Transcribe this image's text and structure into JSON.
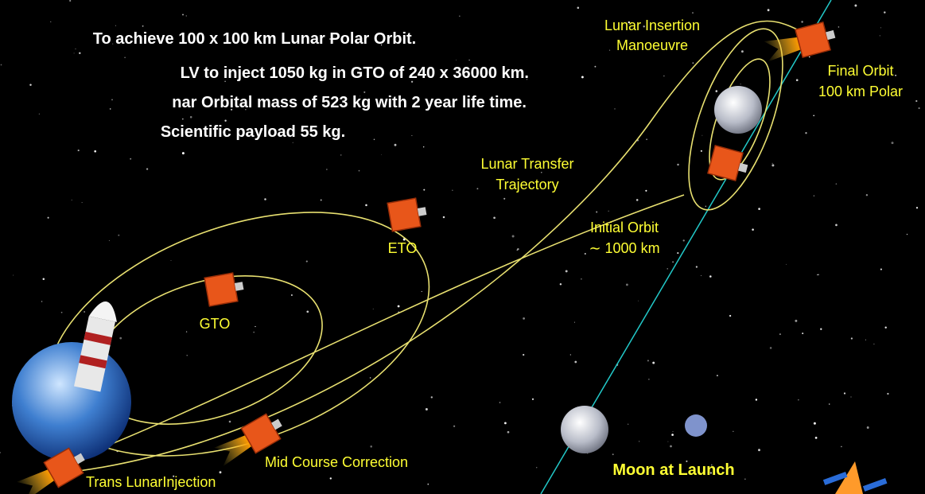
{
  "mission_notes": [
    "To achieve 100 x 100 km Lunar Polar Orbit.",
    "LV to inject 1050 kg in GTO of 240 x 36000 km.",
    "nar Orbital mass of 523 kg with 2 year life time.",
    "Scientific payload  55 kg."
  ],
  "labels": {
    "lunar_insertion": [
      "Lunar Insertion",
      "Manoeuvre"
    ],
    "final_orbit": [
      "Final Orbit",
      "100 km Polar"
    ],
    "lunar_transfer": [
      "Lunar Transfer",
      "Trajectory"
    ],
    "initial_orbit": [
      "Initial Orbit",
      "∼ 1000 km"
    ],
    "eto": "ETO",
    "gto": "GTO",
    "mid_course": "Mid Course Correction",
    "tli": "Trans LunarInjection",
    "moon_at_launch": "Moon at Launch"
  }
}
